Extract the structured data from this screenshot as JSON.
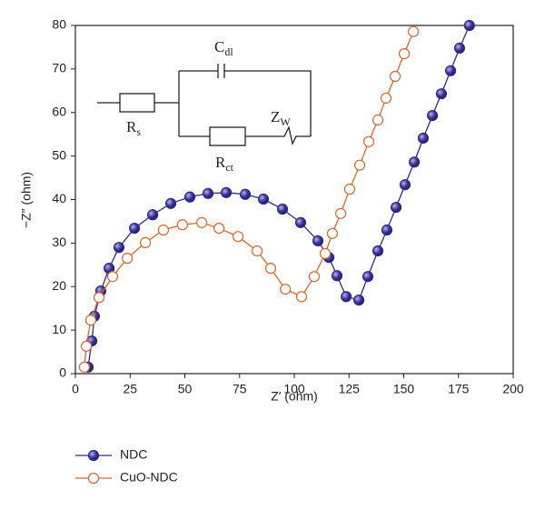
{
  "chart_data": {
    "type": "scatter",
    "xlabel": "Z′ (ohm)",
    "ylabel": "−Z″ (ohm)",
    "xlim": [
      0,
      200
    ],
    "xticks": [
      0,
      25,
      50,
      75,
      100,
      125,
      150,
      175,
      200
    ],
    "ylim": [
      0,
      80
    ],
    "yticks": [
      0,
      10,
      20,
      30,
      40,
      50,
      60,
      70,
      80
    ],
    "annotations": [
      {
        "text": "C",
        "sub": "dl"
      },
      {
        "text": "R",
        "sub": "s"
      },
      {
        "text": "R",
        "sub": "ct"
      },
      {
        "text": "Z",
        "sub": "W"
      }
    ],
    "series": [
      {
        "name": "NDC",
        "color": "#2f2a8c",
        "marker": "filled",
        "x": [
          5.8,
          7.5,
          8.7,
          11.6,
          15.4,
          19.9,
          27,
          35.3,
          43.6,
          52.3,
          60.6,
          68.9,
          77.6,
          85.9,
          94.6,
          102.9,
          110.8,
          115.8,
          119.5,
          123.7,
          129.5,
          133.6,
          138.2,
          142.3,
          146.5,
          150.6,
          154.8,
          158.9,
          163.1,
          167.2,
          171.4,
          175.5,
          180
        ],
        "values": [
          1.5,
          7.5,
          13.2,
          19,
          24.2,
          29,
          33.4,
          36.5,
          39.1,
          40.6,
          41.4,
          41.6,
          41.2,
          40.1,
          37.8,
          34.7,
          30.5,
          26.7,
          22.5,
          17.7,
          16.9,
          22.3,
          28.2,
          33,
          38.2,
          43.4,
          48.6,
          54.1,
          59.3,
          64.3,
          69.6,
          74.8,
          80
        ]
      },
      {
        "name": "CuO-NDC",
        "color": "#e06428",
        "marker": "open",
        "x": [
          4.1,
          5,
          7,
          10.8,
          17,
          23.7,
          32,
          40.2,
          48.9,
          57.7,
          65.6,
          74.3,
          83,
          89.2,
          95.9,
          103.3,
          109.1,
          114.1,
          117.4,
          121.2,
          125.3,
          129.9,
          134,
          138.2,
          141.9,
          146.1,
          150.2,
          154.4
        ],
        "values": [
          1.5,
          6.3,
          12.3,
          17.5,
          22.3,
          26.5,
          30.1,
          33,
          34.2,
          34.7,
          33.4,
          31.5,
          28.2,
          24.2,
          19.4,
          17.7,
          22.3,
          27.6,
          32.2,
          36.8,
          42.4,
          47.9,
          53.3,
          58.3,
          63.3,
          68.3,
          73.5,
          78.6
        ]
      }
    ]
  }
}
